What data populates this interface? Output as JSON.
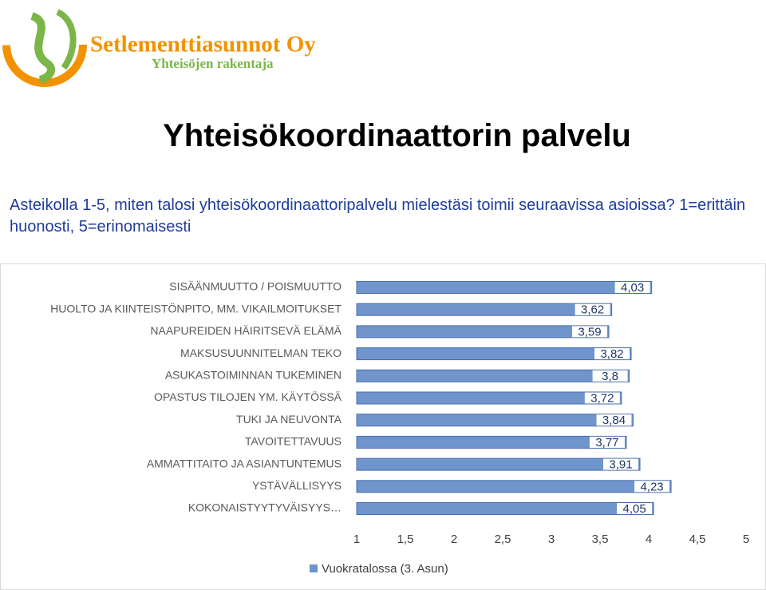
{
  "header": {
    "brand": "Setlementtiasunnot Oy",
    "tagline": "Yhteisöjen rakentaja"
  },
  "title": "Yhteisökoordinaattorin palvelu",
  "subtitle": "Asteikolla 1-5, miten talosi yhteisökoordinaattoripalvelu mielestäsi toimii seuraavissa asioissa?  1=erittäin huonosti, 5=erinomaisesti",
  "chart_data": {
    "type": "hbar",
    "categories": [
      "SISÄÄNMUUTTO / POISMUUTTO",
      "HUOLTO JA KIINTEISTÖNPITO, MM. VIKAILMOITUKSET",
      "NAAPUREIDEN HÄIRITSEVÄ ELÄMÄ",
      "MAKSUSUUNNITELMAN TEKO",
      "ASUKASTOIMINNAN TUKEMINEN",
      "OPASTUS TILOJEN YM. KÄYTÖSSÄ",
      "TUKI JA NEUVONTA",
      "TAVOITETTAVUUS",
      "AMMATTITAITO JA ASIANTUNTEMUS",
      "YSTÄVÄLLISYYS",
      "KOKONAISTYYTYVÄISYYS…"
    ],
    "series": [
      {
        "name": "Vuokratalossa (3. Asun)",
        "color": "#7094cc",
        "values": [
          4.03,
          3.62,
          3.59,
          3.82,
          3.8,
          3.72,
          3.84,
          3.77,
          3.91,
          4.23,
          4.05
        ],
        "value_labels": [
          "4,03",
          "3,62",
          "3,59",
          "3,82",
          "3,8",
          "3,72",
          "3,84",
          "3,77",
          "3,91",
          "4,23",
          "4,05"
        ]
      }
    ],
    "xlim": [
      1,
      5
    ],
    "xticks": [
      1,
      {
        "value": 1.5,
        "label": "1,5"
      },
      2,
      {
        "value": 2.5,
        "label": "2,5"
      },
      3,
      {
        "value": 3.5,
        "label": "3,5"
      },
      4,
      {
        "value": 4.5,
        "label": "4,5"
      },
      5
    ],
    "legend": "bottom"
  }
}
